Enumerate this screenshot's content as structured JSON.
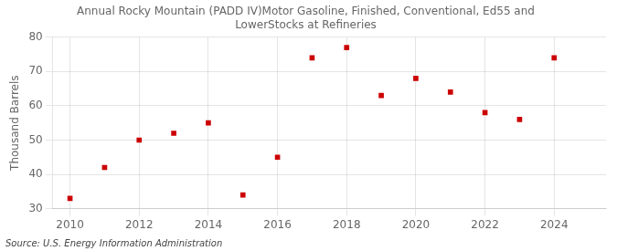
{
  "chart_data": {
    "type": "scatter",
    "title": "Annual Rocky Mountain (PADD IV)Motor Gasoline, Finished, Conventional, Ed55 and\nLowerStocks at Refineries",
    "ylabel": "Thousand Barrels",
    "source": "Source: U.S. Energy Information Administration",
    "x": [
      2010,
      2011,
      2012,
      2013,
      2014,
      2015,
      2016,
      2017,
      2018,
      2019,
      2020,
      2021,
      2022,
      2023,
      2024
    ],
    "values": [
      33,
      42,
      50,
      52,
      55,
      34,
      45,
      74,
      77,
      63,
      68,
      64,
      58,
      56,
      74
    ],
    "color": "#cc0000",
    "marker": "square",
    "xlim": [
      2009.5,
      2025.5
    ],
    "xticks": [
      2010,
      2012,
      2014,
      2016,
      2018,
      2020,
      2022,
      2024
    ],
    "ylim": [
      30,
      80
    ],
    "yticks": [
      30,
      40,
      50,
      60,
      70,
      80
    ],
    "grid": true
  }
}
